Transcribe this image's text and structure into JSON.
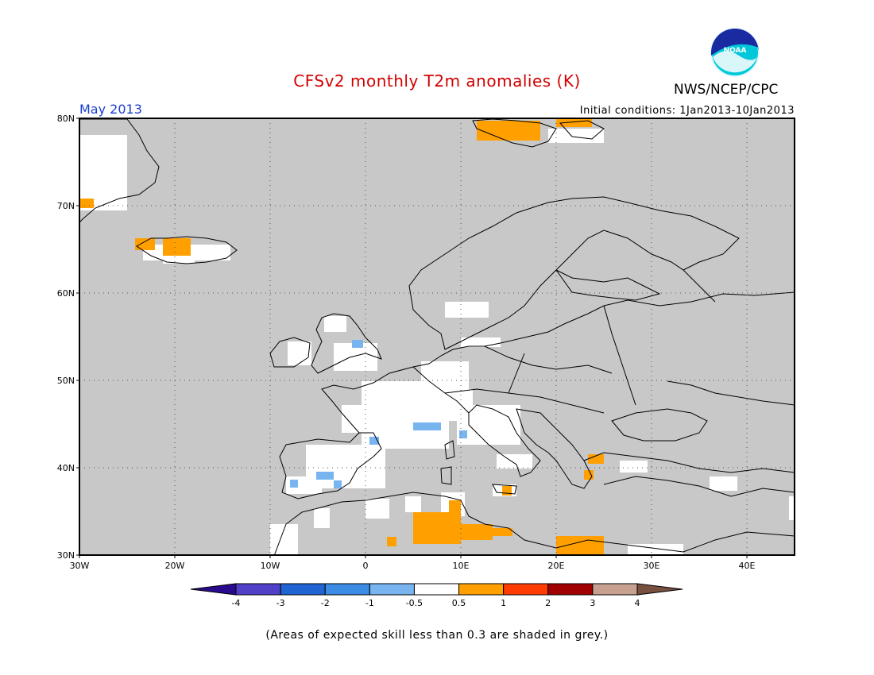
{
  "header": {
    "title": "CFSv2 monthly T2m anomalies (K)",
    "agency": "NWS/NCEP/CPC",
    "logo_text": "NOAA",
    "month": "May 2013",
    "initial_conditions": "Initial conditions: 1Jan2013-10Jan2013"
  },
  "map": {
    "lon_range": [
      -30,
      45
    ],
    "lat_range": [
      30,
      80
    ],
    "lon_ticks": [
      {
        "v": -30,
        "label": "30W"
      },
      {
        "v": -20,
        "label": "20W"
      },
      {
        "v": -10,
        "label": "10W"
      },
      {
        "v": 0,
        "label": "0"
      },
      {
        "v": 10,
        "label": "10E"
      },
      {
        "v": 20,
        "label": "20E"
      },
      {
        "v": 30,
        "label": "30E"
      },
      {
        "v": 40,
        "label": "40E"
      }
    ],
    "lat_ticks": [
      {
        "v": 30,
        "label": "30N"
      },
      {
        "v": 40,
        "label": "40N"
      },
      {
        "v": 50,
        "label": "50N"
      },
      {
        "v": 60,
        "label": "60N"
      },
      {
        "v": 70,
        "label": "70N"
      },
      {
        "v": 80,
        "label": "80N"
      }
    ],
    "skill_mask_color": "#c8c8c8",
    "grid_style": "dotted"
  },
  "colorbar": {
    "labels": [
      "-4",
      "-3",
      "-2",
      "-1",
      "-0.5",
      "0.5",
      "1",
      "2",
      "3",
      "4"
    ],
    "colors": [
      "#2a0a8c",
      "#5040c8",
      "#1f64d2",
      "#3c8ce6",
      "#78b4f0",
      "#ffffff",
      "#ffa000",
      "#ff3c00",
      "#a00000",
      "#c8a090",
      "#785040"
    ]
  },
  "footnote": "(Areas of expected skill less than 0.3 are shaded in grey.)"
}
